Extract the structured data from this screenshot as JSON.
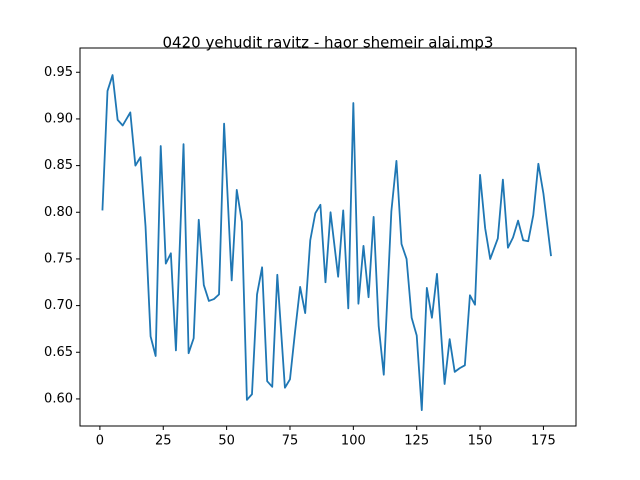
{
  "chart_data": {
    "type": "line",
    "title": "0420 yehudit ravitz - haor shemeir alai.mp3",
    "x": [
      1,
      3,
      5,
      7,
      9,
      12,
      14,
      16,
      18,
      20,
      22,
      24,
      26,
      28,
      30,
      33,
      35,
      37,
      39,
      41,
      43,
      45,
      47,
      49,
      52,
      54,
      56,
      58,
      60,
      62,
      64,
      66,
      68,
      70,
      73,
      75,
      77,
      79,
      81,
      83,
      85,
      87,
      89,
      91,
      94,
      96,
      98,
      100,
      102,
      104,
      106,
      108,
      110,
      112,
      115,
      117,
      119,
      121,
      123,
      125,
      127,
      129,
      131,
      133,
      136,
      138,
      140,
      142,
      144,
      146,
      148,
      150,
      152,
      154,
      157,
      159,
      161,
      163,
      165,
      167,
      169,
      171,
      173,
      175,
      178
    ],
    "series": [
      {
        "color": "#1f77b4",
        "values": [
          0.802,
          0.93,
          0.947,
          0.899,
          0.893,
          0.907,
          0.85,
          0.859,
          0.785,
          0.667,
          0.646,
          0.871,
          0.745,
          0.756,
          0.652,
          0.873,
          0.649,
          0.665,
          0.792,
          0.722,
          0.705,
          0.707,
          0.712,
          0.895,
          0.727,
          0.824,
          0.79,
          0.599,
          0.605,
          0.712,
          0.741,
          0.619,
          0.613,
          0.733,
          0.612,
          0.621,
          0.672,
          0.72,
          0.692,
          0.77,
          0.799,
          0.808,
          0.725,
          0.8,
          0.731,
          0.802,
          0.697,
          0.917,
          0.702,
          0.764,
          0.709,
          0.795,
          0.678,
          0.626,
          0.801,
          0.855,
          0.766,
          0.75,
          0.687,
          0.668,
          0.588,
          0.719,
          0.687,
          0.734,
          0.616,
          0.664,
          0.629,
          0.633,
          0.636,
          0.711,
          0.701,
          0.84,
          0.783,
          0.75,
          0.772,
          0.835,
          0.762,
          0.773,
          0.791,
          0.77,
          0.769,
          0.797,
          0.852,
          0.82,
          0.753
        ]
      }
    ],
    "xlim": [
      -7.85,
      187.85
    ],
    "xticks": [
      0,
      25,
      50,
      75,
      100,
      125,
      150,
      175
    ],
    "ylim": [
      0.571,
      0.976
    ],
    "yticks": [
      {
        "value": 0.6,
        "label": "0.60"
      },
      {
        "value": 0.65,
        "label": "0.65"
      },
      {
        "value": 0.7,
        "label": "0.70"
      },
      {
        "value": 0.75,
        "label": "0.75"
      },
      {
        "value": 0.8,
        "label": "0.80"
      },
      {
        "value": 0.85,
        "label": "0.85"
      },
      {
        "value": 0.9,
        "label": "0.90"
      },
      {
        "value": 0.95,
        "label": "0.95"
      }
    ],
    "grid": false
  }
}
